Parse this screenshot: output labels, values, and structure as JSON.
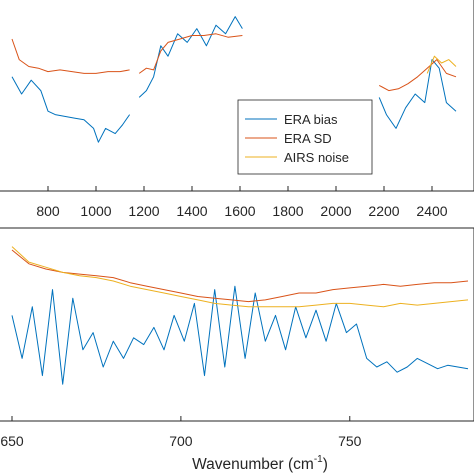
{
  "colors": {
    "era_bias": "#0072BD",
    "era_sd": "#D95319",
    "airs_noise": "#EDB120",
    "axis": "#262626"
  },
  "chart_data": [
    {
      "type": "line",
      "xlim": [
        650,
        2500
      ],
      "xticks": [
        800,
        1000,
        1200,
        1400,
        1600,
        1800,
        2000,
        2200,
        2400
      ],
      "xtick_labels": [
        "800",
        "1000",
        "1200",
        "1400",
        "1600",
        "1800",
        "2000",
        "2200",
        "2400"
      ],
      "ylim": [
        0,
        1
      ],
      "legend": {
        "placement": "center-right",
        "entries": [
          "ERA bias",
          "ERA SD",
          "AIRS noise"
        ]
      },
      "series": [
        {
          "name": "ERA bias",
          "segments": [
            {
              "x": [
                650,
                690,
                730,
                770,
                800,
                830,
                870,
                910,
                950,
                990,
                1010,
                1040,
                1080,
                1110,
                1140
              ],
              "y": [
                0.6,
                0.5,
                0.58,
                0.52,
                0.4,
                0.38,
                0.37,
                0.36,
                0.35,
                0.3,
                0.22,
                0.3,
                0.27,
                0.32,
                0.38
              ]
            },
            {
              "x": [
                1180,
                1210,
                1240,
                1270,
                1300,
                1340,
                1380,
                1420,
                1460,
                1500,
                1540,
                1580,
                1610
              ],
              "y": [
                0.48,
                0.52,
                0.6,
                0.78,
                0.72,
                0.85,
                0.8,
                0.88,
                0.78,
                0.9,
                0.85,
                0.95,
                0.88
              ]
            },
            {
              "x": [
                2180,
                2210,
                2250,
                2290,
                2330,
                2370,
                2400,
                2430,
                2460,
                2500
              ],
              "y": [
                0.48,
                0.38,
                0.3,
                0.42,
                0.5,
                0.45,
                0.7,
                0.65,
                0.45,
                0.4
              ]
            }
          ]
        },
        {
          "name": "ERA SD",
          "segments": [
            {
              "x": [
                650,
                680,
                720,
                760,
                800,
                850,
                900,
                950,
                1000,
                1050,
                1100,
                1140
              ],
              "y": [
                0.82,
                0.7,
                0.66,
                0.65,
                0.63,
                0.64,
                0.63,
                0.62,
                0.62,
                0.63,
                0.63,
                0.64
              ]
            },
            {
              "x": [
                1180,
                1210,
                1240,
                1270,
                1300,
                1350,
                1400,
                1450,
                1500,
                1550,
                1610
              ],
              "y": [
                0.62,
                0.65,
                0.64,
                0.75,
                0.8,
                0.82,
                0.84,
                0.84,
                0.85,
                0.83,
                0.84
              ]
            },
            {
              "x": [
                2180,
                2220,
                2260,
                2300,
                2340,
                2380,
                2420,
                2460,
                2500
              ],
              "y": [
                0.55,
                0.52,
                0.53,
                0.56,
                0.6,
                0.65,
                0.7,
                0.62,
                0.6
              ]
            }
          ]
        },
        {
          "name": "AIRS noise",
          "segments": [
            {
              "x": [
                2380,
                2410,
                2440,
                2470,
                2500
              ],
              "y": [
                0.62,
                0.72,
                0.68,
                0.7,
                0.66
              ]
            }
          ]
        }
      ]
    },
    {
      "type": "line",
      "xlim": [
        650,
        785
      ],
      "xticks": [
        650,
        700,
        750
      ],
      "xtick_labels": [
        "650",
        "700",
        "750"
      ],
      "xlabel": "Wavenumber (cm",
      "xlabel_sup": "-1",
      "xlabel_end": ")",
      "ylim": [
        0,
        1
      ],
      "series": [
        {
          "name": "ERA bias",
          "x": [
            650,
            653,
            656,
            659,
            662,
            665,
            668,
            671,
            674,
            677,
            680,
            683,
            686,
            689,
            692,
            695,
            698,
            701,
            704,
            707,
            710,
            713,
            716,
            719,
            722,
            725,
            728,
            731,
            734,
            737,
            740,
            743,
            746,
            749,
            752,
            755,
            758,
            761,
            764,
            767,
            770,
            773,
            776,
            779,
            782,
            785
          ],
          "y": [
            0.55,
            0.3,
            0.6,
            0.2,
            0.7,
            0.15,
            0.65,
            0.35,
            0.45,
            0.25,
            0.4,
            0.3,
            0.42,
            0.38,
            0.48,
            0.35,
            0.55,
            0.4,
            0.62,
            0.2,
            0.7,
            0.25,
            0.72,
            0.3,
            0.68,
            0.4,
            0.55,
            0.35,
            0.6,
            0.42,
            0.58,
            0.4,
            0.62,
            0.45,
            0.5,
            0.3,
            0.25,
            0.28,
            0.22,
            0.25,
            0.3,
            0.27,
            0.24,
            0.26,
            0.25,
            0.24
          ]
        },
        {
          "name": "ERA SD",
          "x": [
            650,
            655,
            660,
            665,
            670,
            675,
            680,
            685,
            690,
            695,
            700,
            705,
            710,
            715,
            720,
            725,
            730,
            735,
            740,
            745,
            750,
            755,
            760,
            765,
            770,
            775,
            780,
            785
          ],
          "y": [
            0.93,
            0.85,
            0.82,
            0.8,
            0.79,
            0.78,
            0.77,
            0.74,
            0.72,
            0.7,
            0.68,
            0.66,
            0.65,
            0.64,
            0.63,
            0.64,
            0.66,
            0.68,
            0.68,
            0.7,
            0.71,
            0.72,
            0.73,
            0.72,
            0.73,
            0.74,
            0.74,
            0.75
          ]
        },
        {
          "name": "AIRS noise",
          "x": [
            650,
            655,
            660,
            665,
            670,
            675,
            680,
            685,
            690,
            695,
            700,
            705,
            710,
            715,
            720,
            725,
            730,
            735,
            740,
            745,
            750,
            755,
            760,
            765,
            770,
            775,
            780,
            785
          ],
          "y": [
            0.95,
            0.86,
            0.83,
            0.8,
            0.78,
            0.77,
            0.75,
            0.72,
            0.7,
            0.68,
            0.66,
            0.64,
            0.62,
            0.61,
            0.6,
            0.6,
            0.6,
            0.6,
            0.61,
            0.62,
            0.62,
            0.61,
            0.6,
            0.62,
            0.61,
            0.62,
            0.63,
            0.64
          ]
        }
      ]
    }
  ]
}
